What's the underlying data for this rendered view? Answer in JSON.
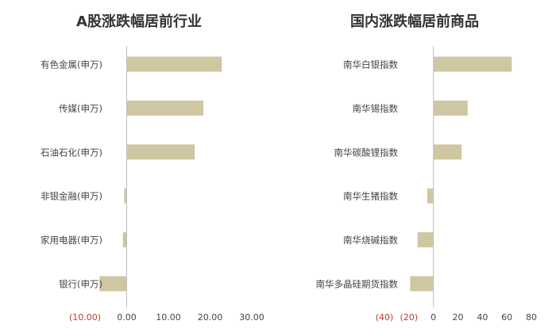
{
  "chart_data": [
    {
      "type": "bar",
      "orientation": "horizontal",
      "title": "A股涨跌幅居前行业",
      "categories": [
        "有色金属(申万)",
        "传媒(申万)",
        "石油石化(申万)",
        "非银金融(申万)",
        "家用电器(申万)",
        "银行(申万)"
      ],
      "values": [
        22.8,
        18.4,
        16.3,
        -0.6,
        -0.9,
        -6.5
      ],
      "xlim": [
        -10,
        30
      ],
      "ticks": [
        {
          "value": -10,
          "label": "(10.00)"
        },
        {
          "value": 0,
          "label": "0.00"
        },
        {
          "value": 10,
          "label": "10.00"
        },
        {
          "value": 20,
          "label": "20.00"
        },
        {
          "value": 30,
          "label": "30.00"
        }
      ],
      "grid": false,
      "colors": {
        "bar": "#cfc6a2",
        "negative_tick": "#c0392b",
        "tick": "#444444",
        "axis": "#bfbfbf"
      }
    },
    {
      "type": "bar",
      "orientation": "horizontal",
      "title": "国内涨跌幅居前商品",
      "categories": [
        "南华白银指数",
        "南华锡指数",
        "南华碳酸锂指数",
        "南华生猪指数",
        "南华烧碱指数",
        "南华多晶硅期货指数"
      ],
      "values": [
        64,
        28,
        23,
        -5,
        -13,
        -19
      ],
      "xlim": [
        -40,
        80
      ],
      "ticks": [
        {
          "value": -40,
          "label": "(40)"
        },
        {
          "value": -20,
          "label": "(20)"
        },
        {
          "value": 0,
          "label": "0"
        },
        {
          "value": 20,
          "label": "20"
        },
        {
          "value": 40,
          "label": "40"
        },
        {
          "value": 60,
          "label": "60"
        },
        {
          "value": 80,
          "label": "80"
        }
      ],
      "grid": false,
      "colors": {
        "bar": "#cfc6a2",
        "negative_tick": "#c0392b",
        "tick": "#444444",
        "axis": "#bfbfbf"
      }
    }
  ]
}
